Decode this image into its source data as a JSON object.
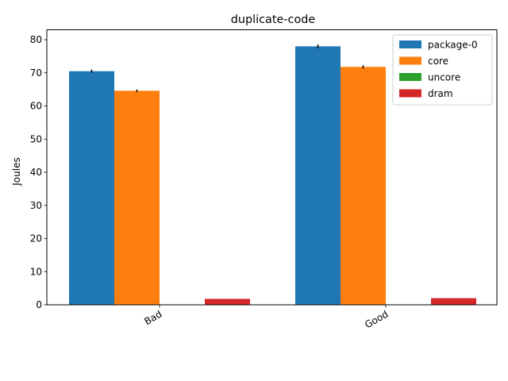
{
  "chart_data": {
    "type": "bar",
    "title": "duplicate-code",
    "xlabel": "",
    "ylabel": "Joules",
    "categories": [
      "Bad",
      "Good"
    ],
    "ylim": [
      0,
      83
    ],
    "yticks": [
      0,
      10,
      20,
      30,
      40,
      50,
      60,
      70,
      80
    ],
    "legend_position": "top-right",
    "grid": false,
    "series": [
      {
        "name": "package-0",
        "color": "#1f77b4",
        "values": [
          70.5,
          78.0
        ],
        "errors": [
          0.5,
          0.6
        ]
      },
      {
        "name": "core",
        "color": "#ff7f0e",
        "values": [
          64.6,
          71.8
        ],
        "errors": [
          0.4,
          0.5
        ]
      },
      {
        "name": "uncore",
        "color": "#2ca02c",
        "values": [
          0.0,
          0.0
        ],
        "errors": [
          0,
          0
        ]
      },
      {
        "name": "dram",
        "color": "#d62728",
        "values": [
          1.8,
          2.0
        ],
        "errors": [
          0,
          0
        ]
      }
    ]
  }
}
